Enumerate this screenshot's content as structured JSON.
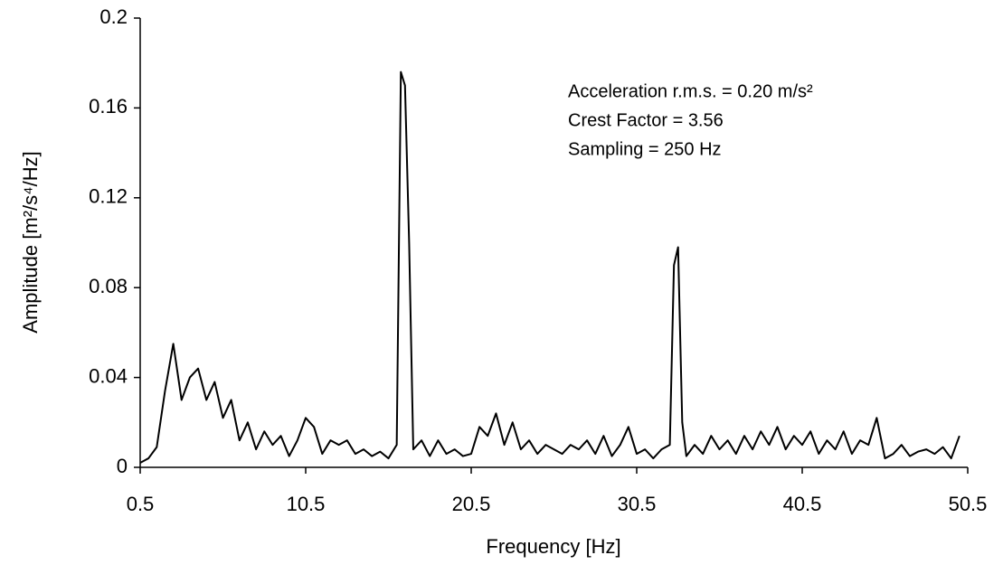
{
  "chart_data": {
    "type": "line",
    "xlabel": "Frequency [Hz]",
    "ylabel": "Amplitude [m²/s⁴/Hz]",
    "annotations": [
      "Acceleration r.m.s. = 0.20 m/s²",
      "Crest Factor = 3.56",
      "Sampling = 250 Hz"
    ],
    "color": "#000000",
    "xlim": [
      0.5,
      50.5
    ],
    "xticks": [
      0.5,
      10.5,
      20.5,
      30.5,
      40.5,
      50.5
    ],
    "ylim": [
      0,
      0.2
    ],
    "yticks": [
      0,
      0.04,
      0.08,
      0.12,
      0.16,
      0.2
    ],
    "grid": false,
    "x": [
      0.5,
      1.0,
      1.5,
      2.0,
      2.5,
      3.0,
      3.5,
      4.0,
      4.5,
      5.0,
      5.5,
      6.0,
      6.5,
      7.0,
      7.5,
      8.0,
      8.5,
      9.0,
      9.5,
      10.0,
      10.5,
      11.0,
      11.5,
      12.0,
      12.5,
      13.0,
      13.5,
      14.0,
      14.5,
      15.0,
      15.5,
      16.0,
      16.25,
      16.5,
      16.75,
      17.0,
      17.5,
      18.0,
      18.5,
      19.0,
      19.5,
      20.0,
      20.5,
      21.0,
      21.5,
      22.0,
      22.5,
      23.0,
      23.5,
      24.0,
      24.5,
      25.0,
      25.5,
      26.0,
      26.5,
      27.0,
      27.5,
      28.0,
      28.5,
      29.0,
      29.5,
      30.0,
      30.5,
      31.0,
      31.5,
      32.0,
      32.5,
      32.75,
      33.0,
      33.25,
      33.5,
      34.0,
      34.5,
      35.0,
      35.5,
      36.0,
      36.5,
      37.0,
      37.5,
      38.0,
      38.5,
      39.0,
      39.5,
      40.0,
      40.5,
      41.0,
      41.5,
      42.0,
      42.5,
      43.0,
      43.5,
      44.0,
      44.5,
      45.0,
      45.5,
      46.0,
      46.5,
      47.0,
      47.5,
      48.0,
      48.5,
      49.0,
      49.5,
      50.0
    ],
    "values": [
      0.002,
      0.004,
      0.009,
      0.034,
      0.055,
      0.03,
      0.04,
      0.044,
      0.03,
      0.038,
      0.022,
      0.03,
      0.012,
      0.02,
      0.008,
      0.016,
      0.01,
      0.014,
      0.005,
      0.012,
      0.022,
      0.018,
      0.006,
      0.012,
      0.01,
      0.012,
      0.006,
      0.008,
      0.005,
      0.007,
      0.004,
      0.01,
      0.176,
      0.17,
      0.1,
      0.008,
      0.012,
      0.005,
      0.012,
      0.006,
      0.008,
      0.005,
      0.006,
      0.018,
      0.014,
      0.024,
      0.01,
      0.02,
      0.008,
      0.012,
      0.006,
      0.01,
      0.008,
      0.006,
      0.01,
      0.008,
      0.012,
      0.006,
      0.014,
      0.005,
      0.01,
      0.018,
      0.006,
      0.008,
      0.004,
      0.008,
      0.01,
      0.09,
      0.098,
      0.02,
      0.005,
      0.01,
      0.006,
      0.014,
      0.008,
      0.012,
      0.006,
      0.014,
      0.008,
      0.016,
      0.01,
      0.018,
      0.008,
      0.014,
      0.01,
      0.016,
      0.006,
      0.012,
      0.008,
      0.016,
      0.006,
      0.012,
      0.01,
      0.022,
      0.004,
      0.006,
      0.01,
      0.005,
      0.007,
      0.008,
      0.006,
      0.009,
      0.004,
      0.014
    ]
  }
}
